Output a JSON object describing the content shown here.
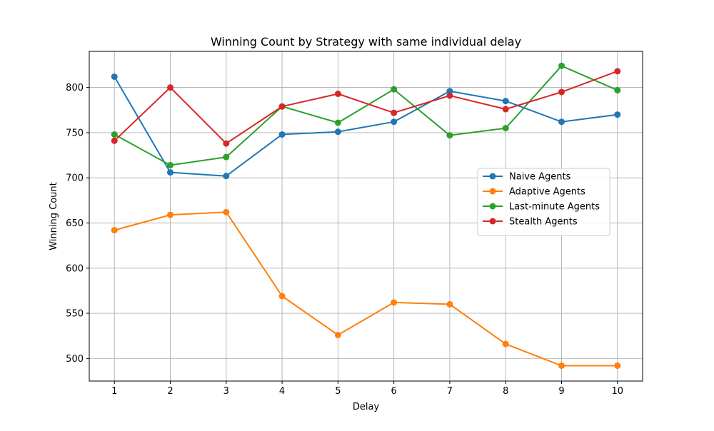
{
  "chart_data": {
    "type": "line",
    "title": "Winning Count by Strategy with same individual delay",
    "xlabel": "Delay",
    "ylabel": "Winning Count",
    "x": [
      1,
      2,
      3,
      4,
      5,
      6,
      7,
      8,
      9,
      10
    ],
    "xlim": [
      0.55,
      10.45
    ],
    "ylim": [
      475,
      840
    ],
    "yticks": [
      500,
      550,
      600,
      650,
      700,
      750,
      800
    ],
    "grid": true,
    "legend_position": "center-right",
    "series": [
      {
        "name": "Naive Agents",
        "color": "#1f77b4",
        "values": [
          812,
          706,
          702,
          748,
          751,
          762,
          796,
          785,
          762,
          770
        ]
      },
      {
        "name": "Adaptive Agents",
        "color": "#ff7f0e",
        "values": [
          642,
          659,
          662,
          569,
          526,
          562,
          560,
          516,
          492,
          492
        ]
      },
      {
        "name": "Last-minute Agents",
        "color": "#2ca02c",
        "values": [
          748,
          714,
          723,
          779,
          761,
          798,
          747,
          755,
          824,
          797
        ]
      },
      {
        "name": "Stealth Agents",
        "color": "#d62728",
        "values": [
          741,
          800,
          738,
          779,
          793,
          772,
          791,
          776,
          795,
          818
        ]
      }
    ]
  }
}
